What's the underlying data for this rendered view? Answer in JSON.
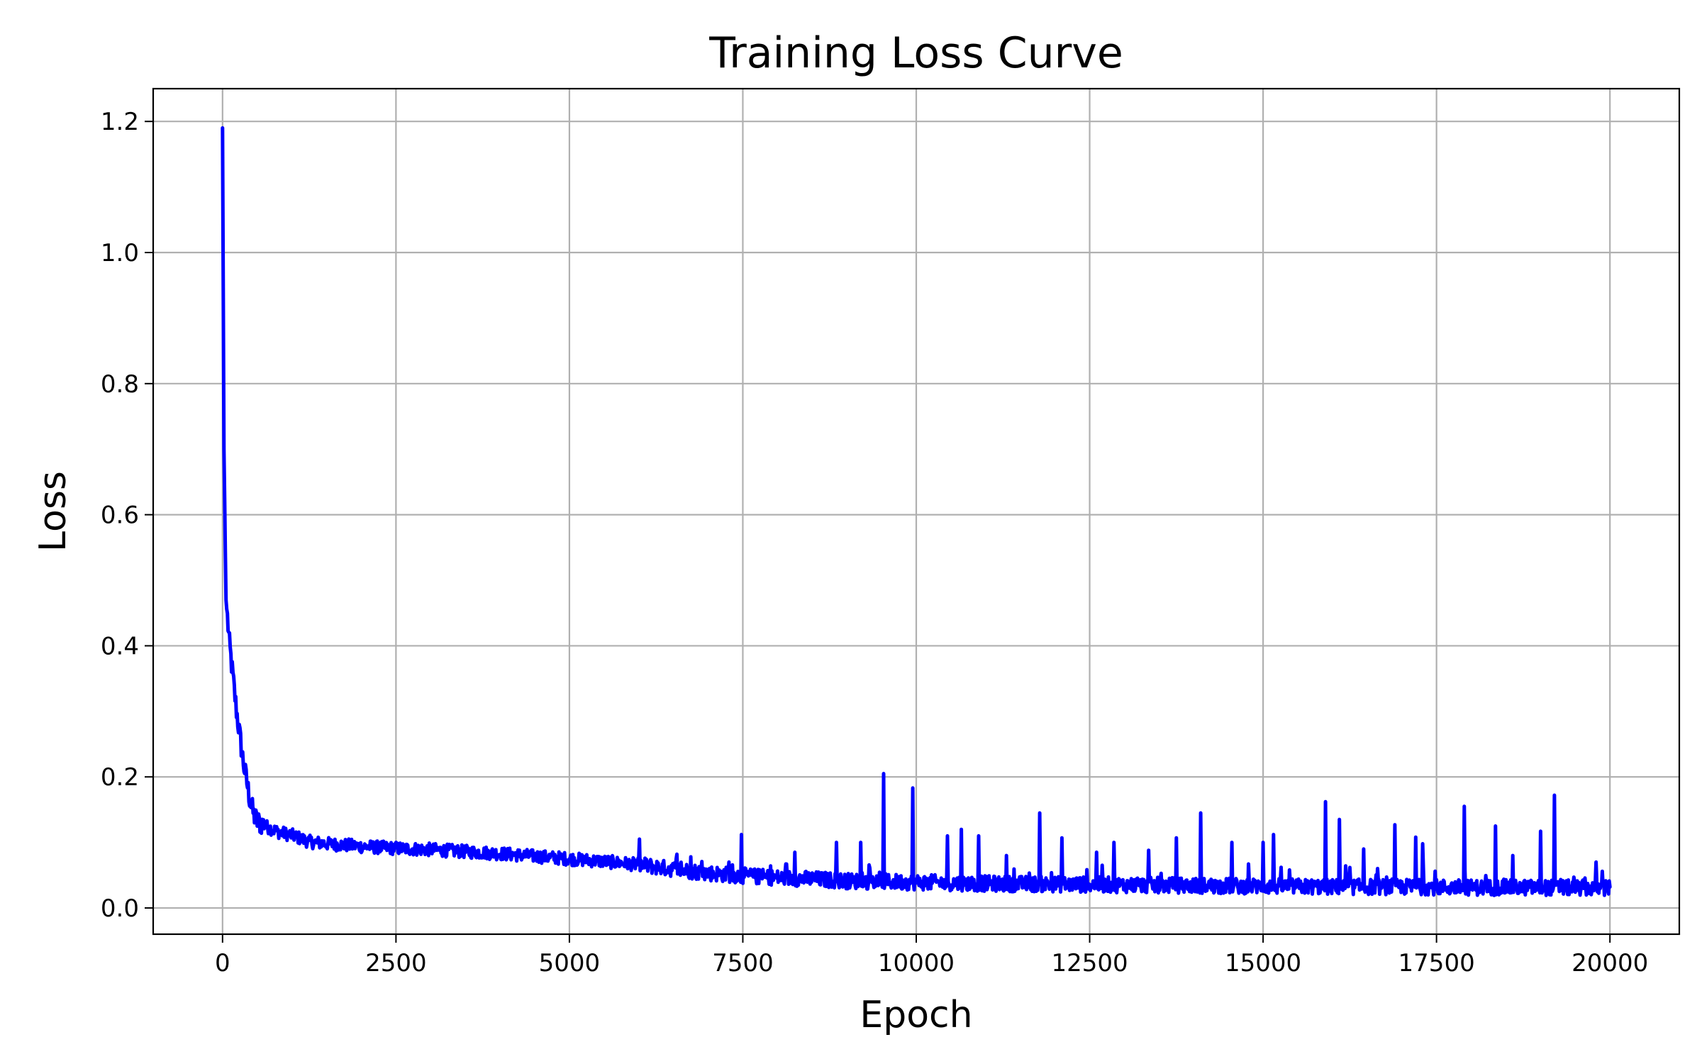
{
  "chart_data": {
    "type": "line",
    "title": "Training Loss Curve",
    "xlabel": "Epoch",
    "ylabel": "Loss",
    "xlim": [
      -1000,
      21000
    ],
    "ylim": [
      -0.04,
      1.25
    ],
    "xticks": [
      0,
      2500,
      5000,
      7500,
      10000,
      12500,
      15000,
      17500,
      20000
    ],
    "yticks": [
      0.0,
      0.2,
      0.4,
      0.6,
      0.8,
      1.0,
      1.2
    ],
    "xtick_labels": [
      "0",
      "2500",
      "5000",
      "7500",
      "10000",
      "12500",
      "15000",
      "17500",
      "20000"
    ],
    "ytick_labels": [
      "0.0",
      "0.2",
      "0.4",
      "0.6",
      "0.8",
      "1.0",
      "1.2"
    ],
    "grid": true,
    "color": "#0000ff",
    "series": [
      {
        "x": [
          0,
          20,
          50,
          100,
          150,
          200,
          250,
          300,
          350,
          400,
          450,
          500,
          600,
          700,
          800,
          1000,
          1250,
          1500,
          2000,
          2500,
          3000,
          3500,
          4000,
          4500,
          5000,
          5500,
          6000,
          6500,
          7000,
          7500,
          8000,
          8500,
          9000,
          9500,
          10000,
          11000,
          12000,
          13000,
          14000,
          15000,
          16000,
          17000,
          18000,
          19000,
          20000
        ],
        "y": [
          1.19,
          0.7,
          0.47,
          0.4,
          0.35,
          0.3,
          0.26,
          0.22,
          0.19,
          0.16,
          0.14,
          0.13,
          0.125,
          0.12,
          0.115,
          0.11,
          0.1,
          0.097,
          0.093,
          0.09,
          0.088,
          0.085,
          0.082,
          0.078,
          0.074,
          0.07,
          0.065,
          0.058,
          0.052,
          0.048,
          0.045,
          0.043,
          0.04,
          0.039,
          0.038,
          0.036,
          0.035,
          0.034,
          0.033,
          0.032,
          0.031,
          0.031,
          0.03,
          0.03,
          0.029
        ]
      }
    ],
    "spikes": [
      {
        "x": 6550,
        "y": 0.082
      },
      {
        "x": 6750,
        "y": 0.078
      },
      {
        "x": 7300,
        "y": 0.07
      },
      {
        "x": 7480,
        "y": 0.112
      },
      {
        "x": 8250,
        "y": 0.085
      },
      {
        "x": 8850,
        "y": 0.1
      },
      {
        "x": 9200,
        "y": 0.1
      },
      {
        "x": 9530,
        "y": 0.205
      },
      {
        "x": 9950,
        "y": 0.183
      },
      {
        "x": 10450,
        "y": 0.11
      },
      {
        "x": 10650,
        "y": 0.12
      },
      {
        "x": 10900,
        "y": 0.11
      },
      {
        "x": 11300,
        "y": 0.08
      },
      {
        "x": 11780,
        "y": 0.145
      },
      {
        "x": 12100,
        "y": 0.107
      },
      {
        "x": 12600,
        "y": 0.085
      },
      {
        "x": 12850,
        "y": 0.1
      },
      {
        "x": 13350,
        "y": 0.088
      },
      {
        "x": 13750,
        "y": 0.107
      },
      {
        "x": 14100,
        "y": 0.145
      },
      {
        "x": 14550,
        "y": 0.1
      },
      {
        "x": 15000,
        "y": 0.1
      },
      {
        "x": 15150,
        "y": 0.112
      },
      {
        "x": 15900,
        "y": 0.162
      },
      {
        "x": 16100,
        "y": 0.135
      },
      {
        "x": 16450,
        "y": 0.09
      },
      {
        "x": 16900,
        "y": 0.127
      },
      {
        "x": 17200,
        "y": 0.108
      },
      {
        "x": 17300,
        "y": 0.098
      },
      {
        "x": 17900,
        "y": 0.155
      },
      {
        "x": 18350,
        "y": 0.125
      },
      {
        "x": 18600,
        "y": 0.08
      },
      {
        "x": 19000,
        "y": 0.117
      },
      {
        "x": 19200,
        "y": 0.172
      },
      {
        "x": 19800,
        "y": 0.07
      }
    ]
  }
}
